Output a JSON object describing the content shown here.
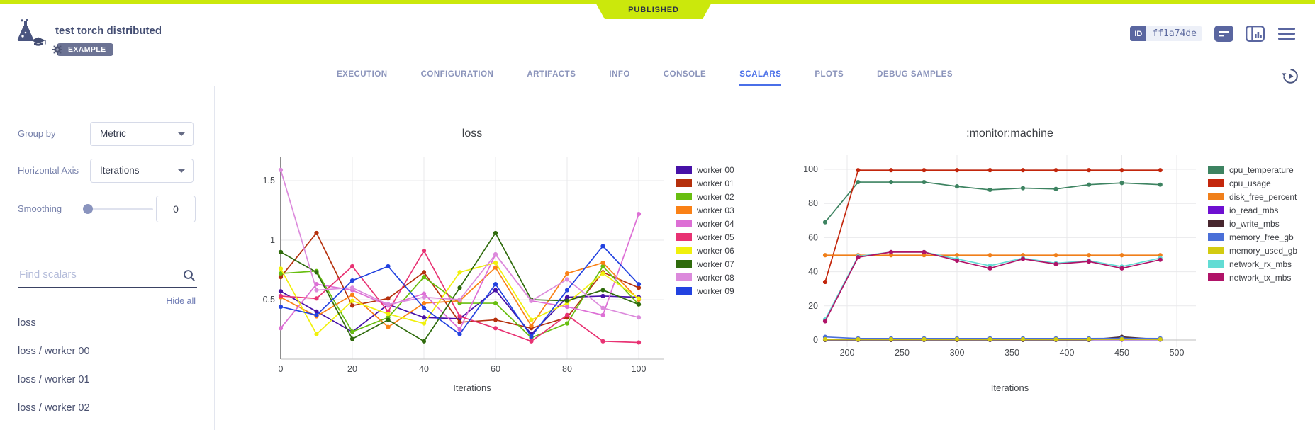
{
  "status_banner": {
    "label": "PUBLISHED"
  },
  "header": {
    "title": "test torch distributed",
    "example_badge": "EXAMPLE",
    "id_label": "ID",
    "id_value": "ff1a74de"
  },
  "tabs": {
    "items": [
      "EXECUTION",
      "CONFIGURATION",
      "ARTIFACTS",
      "INFO",
      "CONSOLE",
      "SCALARS",
      "PLOTS",
      "DEBUG SAMPLES"
    ],
    "active": "SCALARS"
  },
  "sidebar": {
    "group_by_label": "Group by",
    "group_by_value": "Metric",
    "horizontal_axis_label": "Horizontal Axis",
    "horizontal_axis_value": "Iterations",
    "smoothing_label": "Smoothing",
    "smoothing_value": "0",
    "search_placeholder": "Find scalars",
    "hide_all_label": "Hide all",
    "scalar_items": [
      "loss",
      "loss / worker 00",
      "loss / worker 01",
      "loss / worker 02"
    ]
  },
  "colors": {
    "status_green": "#CBE80C",
    "active_tab_blue": "#4A6FE8",
    "slate_icon": "#5A66A0"
  },
  "chart_data": [
    {
      "type": "line",
      "title": "loss",
      "xlabel": "Iterations",
      "legend_position": "right",
      "grid": true,
      "x": [
        0,
        10,
        20,
        30,
        40,
        50,
        60,
        70,
        80,
        90,
        100
      ],
      "xticks": [
        0,
        20,
        40,
        60,
        80,
        100
      ],
      "yticks": [
        0.5,
        1,
        1.5
      ],
      "ylim": [
        0,
        1.7
      ],
      "series": [
        {
          "name": "worker 00",
          "color": "#4611A7",
          "values": [
            0.57,
            0.4,
            0.23,
            0.46,
            0.35,
            0.34,
            0.58,
            0.21,
            0.52,
            0.53,
            0.52
          ]
        },
        {
          "name": "worker 01",
          "color": "#B5300C",
          "values": [
            0.69,
            1.06,
            0.45,
            0.51,
            0.73,
            0.31,
            0.33,
            0.26,
            0.35,
            0.73,
            0.6
          ]
        },
        {
          "name": "worker 02",
          "color": "#68BE10",
          "values": [
            0.72,
            0.74,
            0.23,
            0.35,
            0.69,
            0.47,
            0.47,
            0.18,
            0.3,
            0.78,
            0.46
          ]
        },
        {
          "name": "worker 03",
          "color": "#FA8116",
          "values": [
            0.52,
            0.36,
            0.54,
            0.27,
            0.47,
            0.49,
            0.77,
            0.28,
            0.72,
            0.81,
            0.5
          ]
        },
        {
          "name": "worker 04",
          "color": "#DD6FD5",
          "values": [
            0.26,
            0.63,
            0.58,
            0.45,
            0.55,
            0.25,
            0.88,
            0.49,
            0.44,
            0.37,
            1.22
          ]
        },
        {
          "name": "worker 05",
          "color": "#E83273",
          "values": [
            0.53,
            0.51,
            0.78,
            0.4,
            0.91,
            0.36,
            0.26,
            0.15,
            0.37,
            0.15,
            0.14
          ]
        },
        {
          "name": "worker 06",
          "color": "#F0F00C",
          "values": [
            0.76,
            0.21,
            0.49,
            0.38,
            0.3,
            0.73,
            0.81,
            0.33,
            0.47,
            0.72,
            0.51
          ]
        },
        {
          "name": "worker 07",
          "color": "#2F6B0C",
          "values": [
            0.9,
            0.73,
            0.17,
            0.33,
            0.15,
            0.6,
            1.06,
            0.5,
            0.49,
            0.58,
            0.46
          ]
        },
        {
          "name": "worker 08",
          "color": "#DC8ADC",
          "values": [
            1.59,
            0.58,
            0.6,
            0.46,
            0.52,
            0.5,
            0.88,
            0.49,
            0.67,
            0.43,
            0.35
          ]
        },
        {
          "name": "worker 09",
          "color": "#2242E0",
          "values": [
            0.44,
            0.37,
            0.66,
            0.78,
            0.43,
            0.21,
            0.63,
            0.19,
            0.58,
            0.95,
            0.63
          ]
        }
      ]
    },
    {
      "type": "line",
      "title": ":monitor:machine",
      "xlabel": "Iterations",
      "legend_position": "right",
      "grid": true,
      "x": [
        180,
        210,
        240,
        270,
        300,
        330,
        360,
        390,
        420,
        450,
        485
      ],
      "xticks": [
        200,
        250,
        300,
        350,
        400,
        450,
        500
      ],
      "yticks": [
        0,
        20,
        40,
        60,
        80,
        100
      ],
      "ylim": [
        -3,
        105
      ],
      "series": [
        {
          "name": "cpu_temperature",
          "color": "#3D8361",
          "values": [
            69,
            92.5,
            92.5,
            92.5,
            90,
            88,
            89,
            88.5,
            91,
            92,
            91
          ]
        },
        {
          "name": "cpu_usage",
          "color": "#C3260C",
          "values": [
            34,
            99.5,
            99.5,
            99.5,
            99.5,
            99.5,
            99.5,
            99.5,
            99.5,
            99.5,
            99.5
          ]
        },
        {
          "name": "disk_free_percent",
          "color": "#F07F1A",
          "values": [
            49.7,
            49.7,
            49.7,
            49.7,
            49.7,
            49.7,
            49.7,
            49.7,
            49.7,
            49.7,
            49.7
          ]
        },
        {
          "name": "io_read_mbs",
          "color": "#6E0FD1",
          "values": [
            0.5,
            0.2,
            0.2,
            0.2,
            0.2,
            0.2,
            0.2,
            0.2,
            0.2,
            0.2,
            0.2
          ]
        },
        {
          "name": "io_write_mbs",
          "color": "#47262E",
          "values": [
            0.1,
            0.1,
            0.1,
            0.1,
            0.1,
            0.1,
            0.1,
            0.1,
            0.1,
            1.8,
            0.3
          ]
        },
        {
          "name": "memory_free_gb",
          "color": "#4A6FD8",
          "values": [
            1.8,
            0.9,
            0.9,
            0.9,
            0.9,
            0.9,
            0.9,
            0.9,
            0.9,
            1.0,
            0.9
          ]
        },
        {
          "name": "memory_used_gb",
          "color": "#D3CB11",
          "values": [
            0.4,
            0.4,
            0.4,
            0.4,
            0.4,
            0.4,
            0.4,
            0.4,
            0.4,
            0.4,
            0.4
          ]
        },
        {
          "name": "network_rx_mbs",
          "color": "#62DCD4",
          "values": [
            12,
            49,
            51.5,
            51.5,
            47.5,
            43.5,
            48,
            45,
            46.5,
            43,
            48
          ]
        },
        {
          "name": "network_tx_mbs",
          "color": "#B01368",
          "values": [
            11,
            48.5,
            51.5,
            51.5,
            46.5,
            42,
            47.5,
            44.5,
            46,
            42,
            47
          ]
        }
      ]
    }
  ]
}
